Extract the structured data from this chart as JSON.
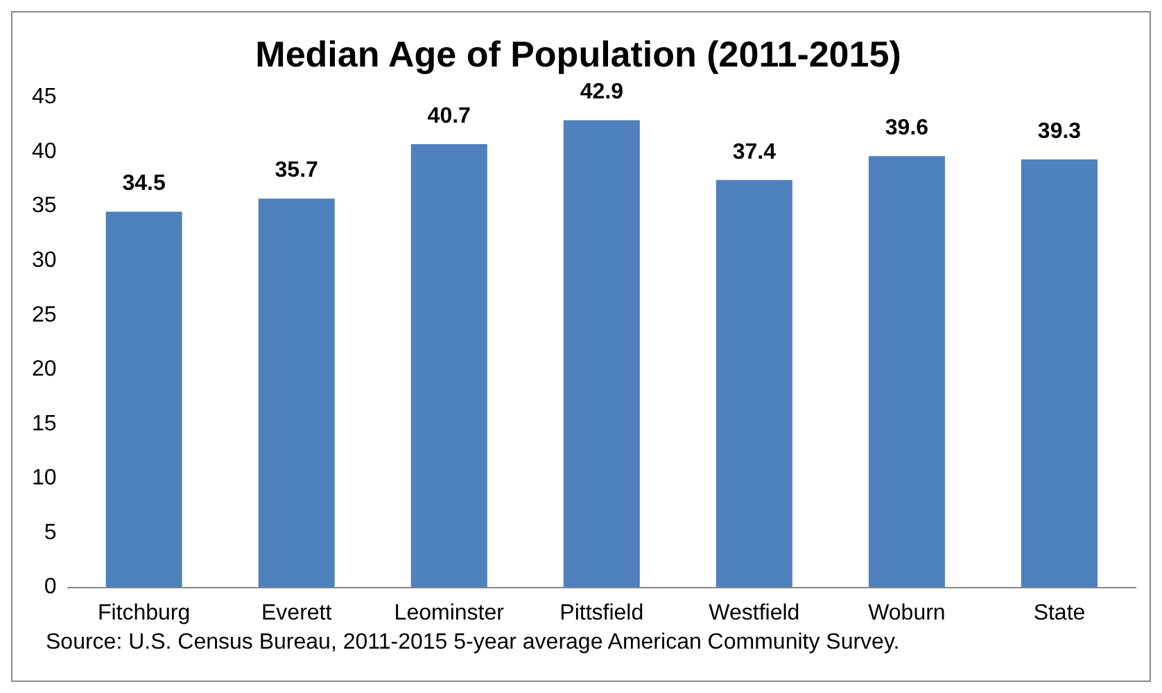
{
  "chart_data": {
    "type": "bar",
    "title": "Median Age of Population (2011-2015)",
    "categories": [
      "Fitchburg",
      "Everett",
      "Leominster",
      "Pittsfield",
      "Westfield",
      "Woburn",
      "State"
    ],
    "values": [
      34.5,
      35.7,
      40.7,
      42.9,
      37.4,
      39.6,
      39.3
    ],
    "color": "#4f81bd",
    "ylim": [
      0,
      45
    ],
    "yticks": [
      0,
      5,
      10,
      15,
      20,
      25,
      30,
      35,
      40,
      45
    ],
    "grid": false,
    "legend": false,
    "data_labels": true,
    "annotations": [
      "Source: U.S. Census Bureau, 2011-2015 5-year average American Community Survey."
    ]
  }
}
